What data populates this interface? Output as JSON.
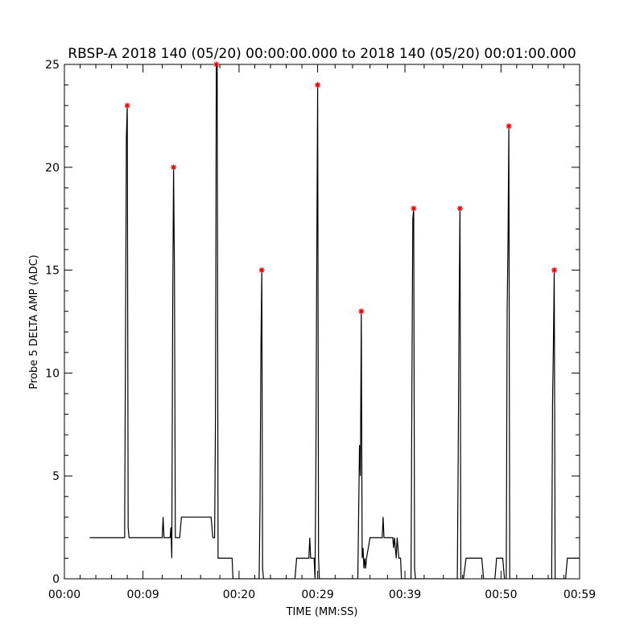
{
  "chart_data": {
    "type": "line",
    "title": "RBSP-A 2018 140 (05/20) 00:00:00.000 to 2018 140 (05/20) 00:01:00.000",
    "xlabel": "TIME (MM:SS)",
    "ylabel": "Probe 5 DELTA AMP (ADC)",
    "x_unit": "seconds",
    "xlim": [
      0,
      59
    ],
    "ylim": [
      0,
      25
    ],
    "x_ticks": [
      {
        "value": 0,
        "label": "00:00"
      },
      {
        "value": 9,
        "label": "00:09"
      },
      {
        "value": 20,
        "label": "00:20"
      },
      {
        "value": 29,
        "label": "00:29"
      },
      {
        "value": 39,
        "label": "00:39"
      },
      {
        "value": 50,
        "label": "00:50"
      },
      {
        "value": 59,
        "label": "00:59"
      }
    ],
    "y_ticks": [
      {
        "value": 0,
        "label": "0"
      },
      {
        "value": 5,
        "label": "5"
      },
      {
        "value": 10,
        "label": "10"
      },
      {
        "value": 15,
        "label": "15"
      },
      {
        "value": 20,
        "label": "20"
      },
      {
        "value": 25,
        "label": "25"
      }
    ],
    "series": [
      {
        "values_xy": [
          [
            2.9,
            2
          ],
          [
            6.9,
            2
          ],
          [
            7.0,
            11.5
          ],
          [
            7.1,
            21.5
          ],
          [
            7.2,
            23
          ],
          [
            7.3,
            2.5
          ],
          [
            7.4,
            2
          ],
          [
            11.2,
            2
          ],
          [
            11.3,
            3
          ],
          [
            11.4,
            2
          ],
          [
            12.1,
            2
          ],
          [
            12.2,
            2.5
          ],
          [
            12.3,
            1
          ],
          [
            12.4,
            13
          ],
          [
            12.5,
            20
          ],
          [
            12.6,
            15
          ],
          [
            12.7,
            2
          ],
          [
            13.2,
            2
          ],
          [
            13.4,
            3
          ],
          [
            16.8,
            3
          ],
          [
            17.0,
            2
          ],
          [
            17.2,
            2
          ],
          [
            17.3,
            8
          ],
          [
            17.4,
            25
          ],
          [
            17.5,
            25
          ],
          [
            17.6,
            1
          ],
          [
            19.2,
            1
          ],
          [
            19.3,
            0
          ],
          [
            22.3,
            0
          ],
          [
            22.4,
            3.5
          ],
          [
            22.5,
            11
          ],
          [
            22.6,
            15
          ],
          [
            22.7,
            0.5
          ],
          [
            22.8,
            0
          ],
          [
            26.4,
            0
          ],
          [
            26.6,
            1
          ],
          [
            28.0,
            1
          ],
          [
            28.1,
            2
          ],
          [
            28.2,
            1
          ],
          [
            28.6,
            1
          ],
          [
            28.7,
            0
          ],
          [
            28.8,
            5.5
          ],
          [
            28.9,
            15.5
          ],
          [
            29.0,
            24
          ],
          [
            29.1,
            1
          ],
          [
            29.2,
            0
          ],
          [
            33.6,
            0
          ],
          [
            33.8,
            6.5
          ],
          [
            33.9,
            5
          ],
          [
            34.0,
            13
          ],
          [
            34.1,
            1
          ],
          [
            34.2,
            1.5
          ],
          [
            34.3,
            0.5
          ],
          [
            34.4,
            1
          ],
          [
            34.5,
            0.5
          ],
          [
            34.6,
            1
          ],
          [
            34.8,
            1.5
          ],
          [
            35.0,
            2
          ],
          [
            36.4,
            2
          ],
          [
            36.5,
            3
          ],
          [
            36.6,
            2
          ],
          [
            37.6,
            2
          ],
          [
            37.7,
            1.5
          ],
          [
            37.8,
            2
          ],
          [
            38.0,
            1
          ],
          [
            38.1,
            2
          ],
          [
            38.3,
            1
          ],
          [
            38.5,
            1
          ],
          [
            38.6,
            0
          ],
          [
            39.7,
            0
          ],
          [
            39.8,
            9.5
          ],
          [
            39.9,
            17.5
          ],
          [
            40.0,
            18
          ],
          [
            40.1,
            0.5
          ],
          [
            40.2,
            0
          ],
          [
            45.0,
            0
          ],
          [
            45.1,
            6
          ],
          [
            45.2,
            13
          ],
          [
            45.3,
            18
          ],
          [
            45.4,
            0
          ],
          [
            45.7,
            0
          ],
          [
            46.0,
            1
          ],
          [
            47.8,
            1
          ],
          [
            48.0,
            0
          ],
          [
            49.3,
            0
          ],
          [
            49.5,
            1
          ],
          [
            50.2,
            1
          ],
          [
            50.4,
            0
          ],
          [
            50.6,
            0
          ],
          [
            50.7,
            13
          ],
          [
            50.8,
            16.5
          ],
          [
            50.9,
            22
          ],
          [
            51.0,
            0
          ],
          [
            55.8,
            0
          ],
          [
            55.9,
            8.5
          ],
          [
            56.0,
            11.5
          ],
          [
            56.1,
            15
          ],
          [
            56.2,
            0
          ],
          [
            57.4,
            0
          ],
          [
            57.6,
            1
          ],
          [
            60.4,
            1
          ]
        ]
      }
    ],
    "peaks": [
      {
        "x": 7.2,
        "y": 23
      },
      {
        "x": 12.5,
        "y": 20
      },
      {
        "x": 17.4,
        "y": 25
      },
      {
        "x": 22.6,
        "y": 15
      },
      {
        "x": 29.0,
        "y": 24
      },
      {
        "x": 34.0,
        "y": 13
      },
      {
        "x": 40.0,
        "y": 18
      },
      {
        "x": 45.3,
        "y": 18
      },
      {
        "x": 50.9,
        "y": 22
      },
      {
        "x": 56.1,
        "y": 15
      }
    ],
    "line_color": "#000000",
    "peak_marker_color": "#e60000",
    "grid": false,
    "legend": "none"
  }
}
